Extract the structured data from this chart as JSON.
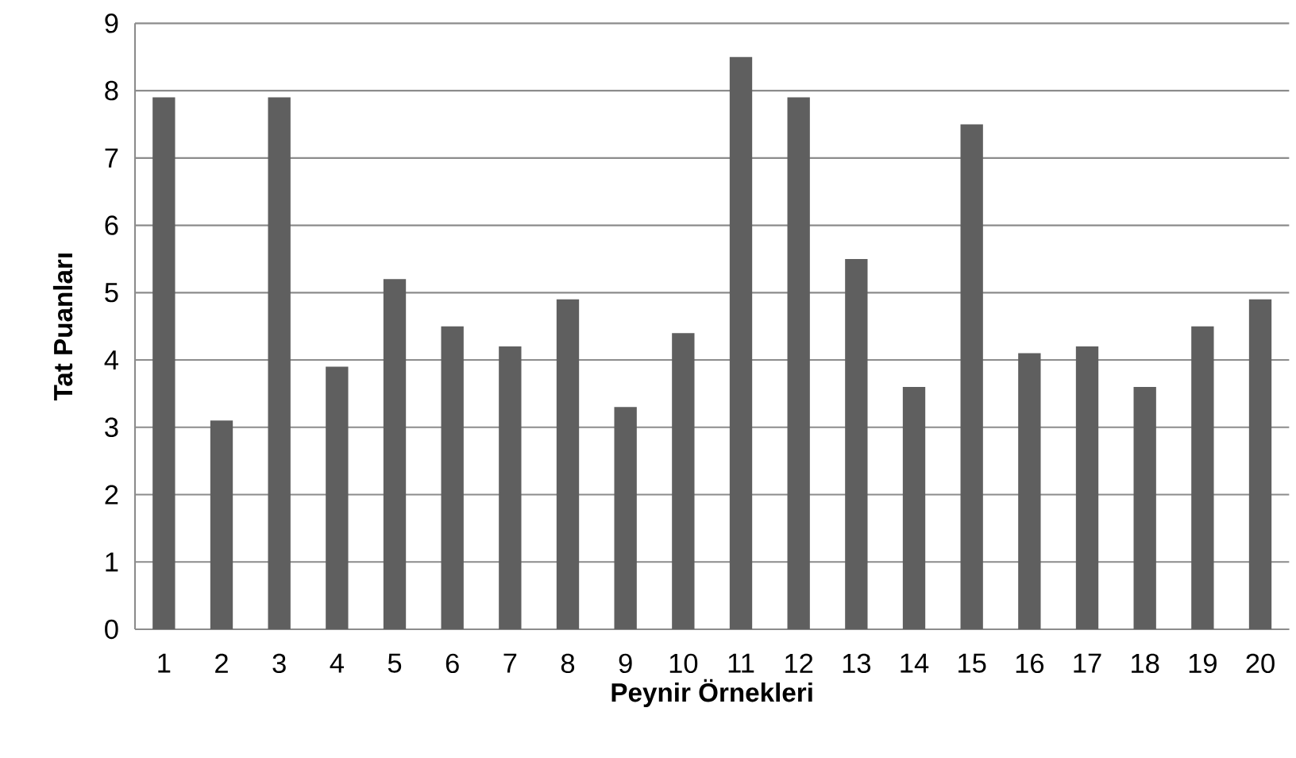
{
  "chart_data": {
    "type": "bar",
    "xlabel": "Peynir Örnekleri",
    "ylabel": "Tat Puanları",
    "categories": [
      "1",
      "2",
      "3",
      "4",
      "5",
      "6",
      "7",
      "8",
      "9",
      "10",
      "11",
      "12",
      "13",
      "14",
      "15",
      "16",
      "17",
      "18",
      "19",
      "20"
    ],
    "values": [
      7.9,
      3.1,
      7.9,
      3.9,
      5.2,
      4.5,
      4.2,
      4.9,
      3.3,
      4.4,
      8.5,
      7.9,
      5.5,
      3.6,
      7.5,
      4.1,
      4.2,
      3.6,
      4.5,
      4.9
    ],
    "color": "#5f5f5f",
    "ylim": [
      0,
      9
    ],
    "yticks": [
      0,
      1,
      2,
      3,
      4,
      5,
      6,
      7,
      8,
      9
    ],
    "grid": "y"
  }
}
